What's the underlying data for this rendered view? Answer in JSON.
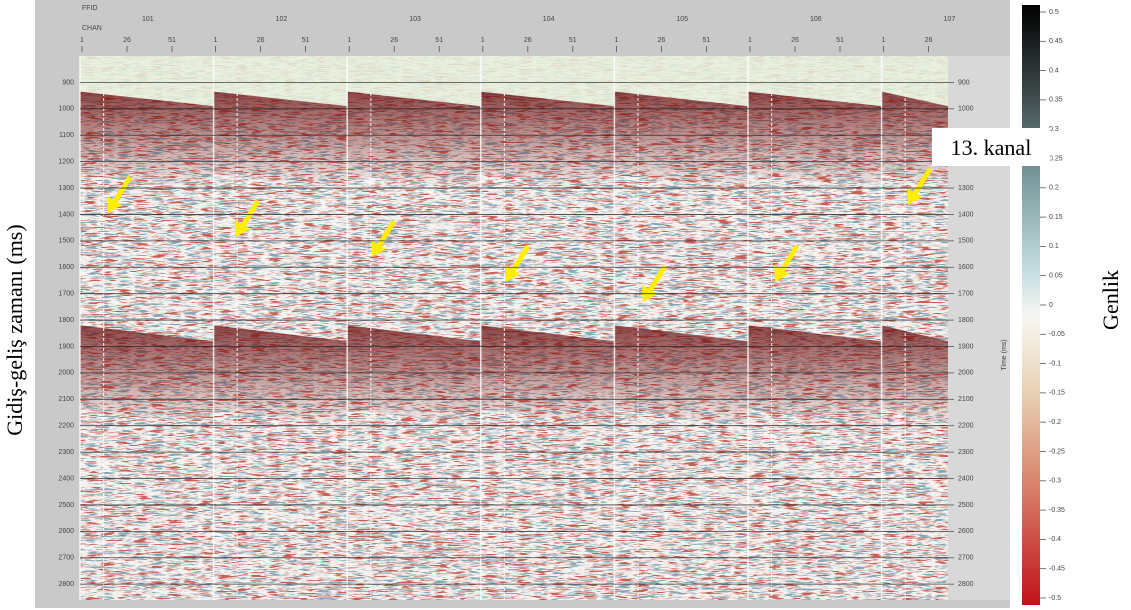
{
  "y_axis_label": "Gidiş-geliş zamanı (ms)",
  "colorbar_label": "Genlik",
  "callout": "13. kanal",
  "header": {
    "ffid_label": "FFID",
    "chan_label": "CHAN"
  },
  "shots": [
    {
      "ffid": 101,
      "channels": [
        1,
        26,
        51
      ]
    },
    {
      "ffid": 102,
      "channels": [
        1,
        26,
        51
      ]
    },
    {
      "ffid": 103,
      "channels": [
        1,
        26,
        51
      ]
    },
    {
      "ffid": 104,
      "channels": [
        1,
        26,
        51
      ]
    },
    {
      "ffid": 105,
      "channels": [
        1,
        26,
        51
      ]
    },
    {
      "ffid": 106,
      "channels": [
        1,
        26,
        51
      ]
    },
    {
      "ffid": 107,
      "channels": [
        1,
        26
      ]
    }
  ],
  "time_axis": {
    "label": "Time (ms)",
    "lim": [
      800,
      2860
    ],
    "ticks": [
      900,
      1000,
      1100,
      1200,
      1300,
      1400,
      1500,
      1600,
      1700,
      1800,
      1900,
      2000,
      2100,
      2200,
      2300,
      2400,
      2500,
      2600,
      2700,
      2800
    ]
  },
  "colorbar": {
    "lim": [
      0.5,
      -0.5
    ],
    "ticks": [
      0.5,
      0.45,
      0.4,
      0.35,
      0.3,
      0.25,
      0.2,
      0.15,
      0.1,
      0.05,
      0,
      -0.05,
      -0.1,
      -0.15,
      -0.2,
      -0.25,
      -0.3,
      -0.35,
      -0.4,
      -0.45,
      -0.5
    ]
  }
}
